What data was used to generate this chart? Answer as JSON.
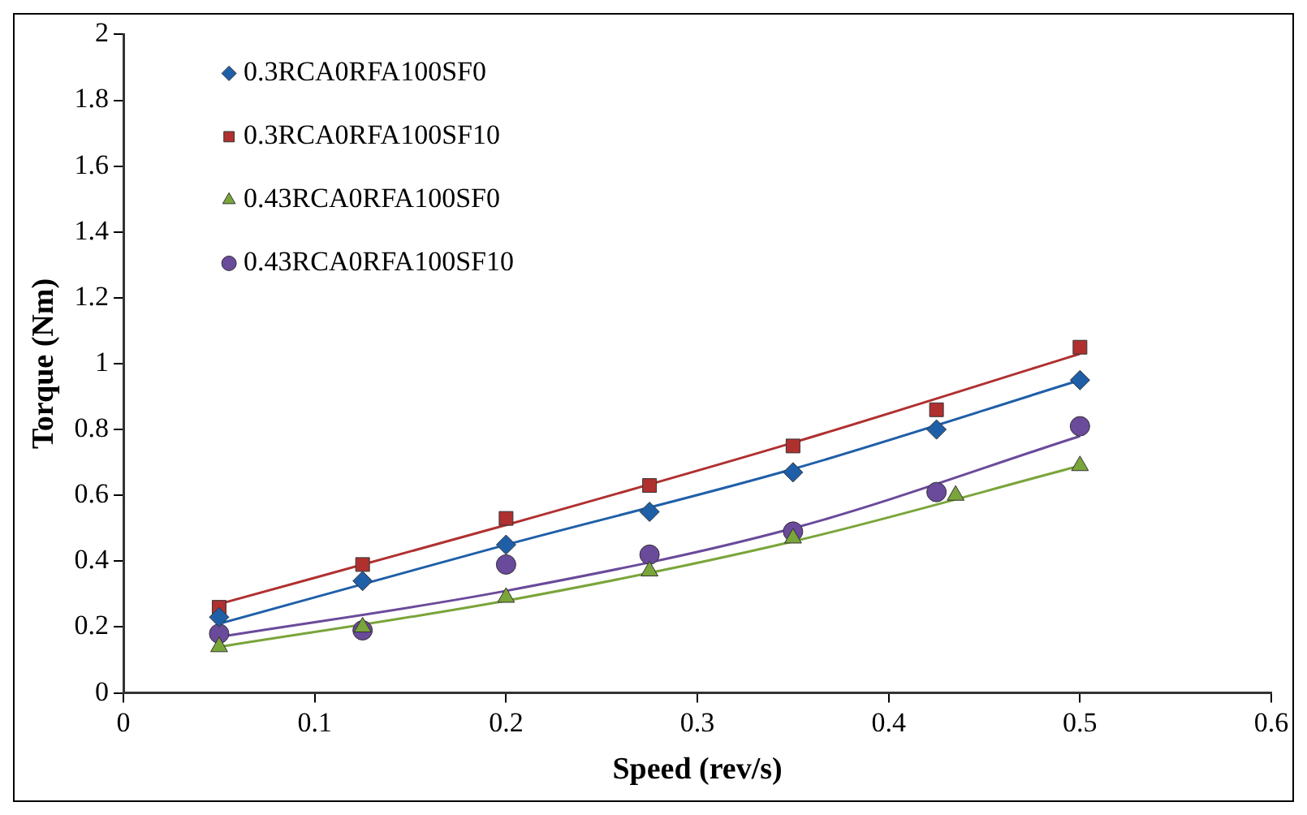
{
  "chart_data": {
    "type": "scatter",
    "xlabel": "Speed (rev/s)",
    "ylabel": "Torque (Nm)",
    "xlim": [
      0,
      0.6
    ],
    "xticks": [
      0,
      0.1,
      0.2,
      0.3,
      0.4,
      0.5,
      0.6
    ],
    "ylim": [
      0,
      2
    ],
    "yticks": [
      0,
      0.2,
      0.4,
      0.6,
      0.8,
      1,
      1.2,
      1.4,
      1.6,
      1.8,
      2
    ],
    "grid": false,
    "legend": "top left",
    "series": [
      {
        "name": "0.3RCA0RFA100SF0",
        "color": "#1f5fa8",
        "marker": "diamond",
        "x": [
          0.05,
          0.125,
          0.2,
          0.275,
          0.35,
          0.425,
          0.5
        ],
        "values": [
          0.23,
          0.34,
          0.45,
          0.55,
          0.67,
          0.8,
          0.95
        ]
      },
      {
        "name": "0.3RCA0RFA100SF10",
        "color": "#b03030",
        "marker": "square",
        "x": [
          0.05,
          0.125,
          0.2,
          0.275,
          0.35,
          0.425,
          0.5
        ],
        "values": [
          0.26,
          0.39,
          0.53,
          0.63,
          0.75,
          0.86,
          1.05
        ]
      },
      {
        "name": "0.43RCA0RFA100SF0",
        "color": "#7aa53a",
        "marker": "triangle",
        "x": [
          0.05,
          0.125,
          0.2,
          0.275,
          0.35,
          0.435,
          0.5
        ],
        "values": [
          0.14,
          0.2,
          0.29,
          0.37,
          0.47,
          0.6,
          0.69
        ]
      },
      {
        "name": "0.43RCA0RFA100SF10",
        "color": "#6a4a9a",
        "marker": "circle",
        "x": [
          0.05,
          0.125,
          0.2,
          0.275,
          0.35,
          0.425,
          0.5
        ],
        "values": [
          0.18,
          0.19,
          0.39,
          0.42,
          0.49,
          0.61,
          0.81
        ]
      },
      {
        "type": "line",
        "color": "#1f5fa8",
        "marker": "none",
        "x": [
          0.05,
          0.2,
          0.35,
          0.5
        ],
        "values": [
          0.21,
          0.45,
          0.68,
          0.95
        ]
      },
      {
        "type": "line",
        "color": "#b03030",
        "marker": "none",
        "x": [
          0.05,
          0.2,
          0.35,
          0.5
        ],
        "values": [
          0.27,
          0.51,
          0.76,
          1.03
        ]
      },
      {
        "type": "line",
        "color": "#7aa53a",
        "marker": "none",
        "x": [
          0.05,
          0.2,
          0.35,
          0.5
        ],
        "values": [
          0.14,
          0.28,
          0.46,
          0.69
        ]
      },
      {
        "type": "line",
        "color": "#6a4a9a",
        "marker": "none",
        "x": [
          0.05,
          0.2,
          0.35,
          0.5
        ],
        "values": [
          0.17,
          0.31,
          0.5,
          0.78
        ]
      }
    ]
  }
}
